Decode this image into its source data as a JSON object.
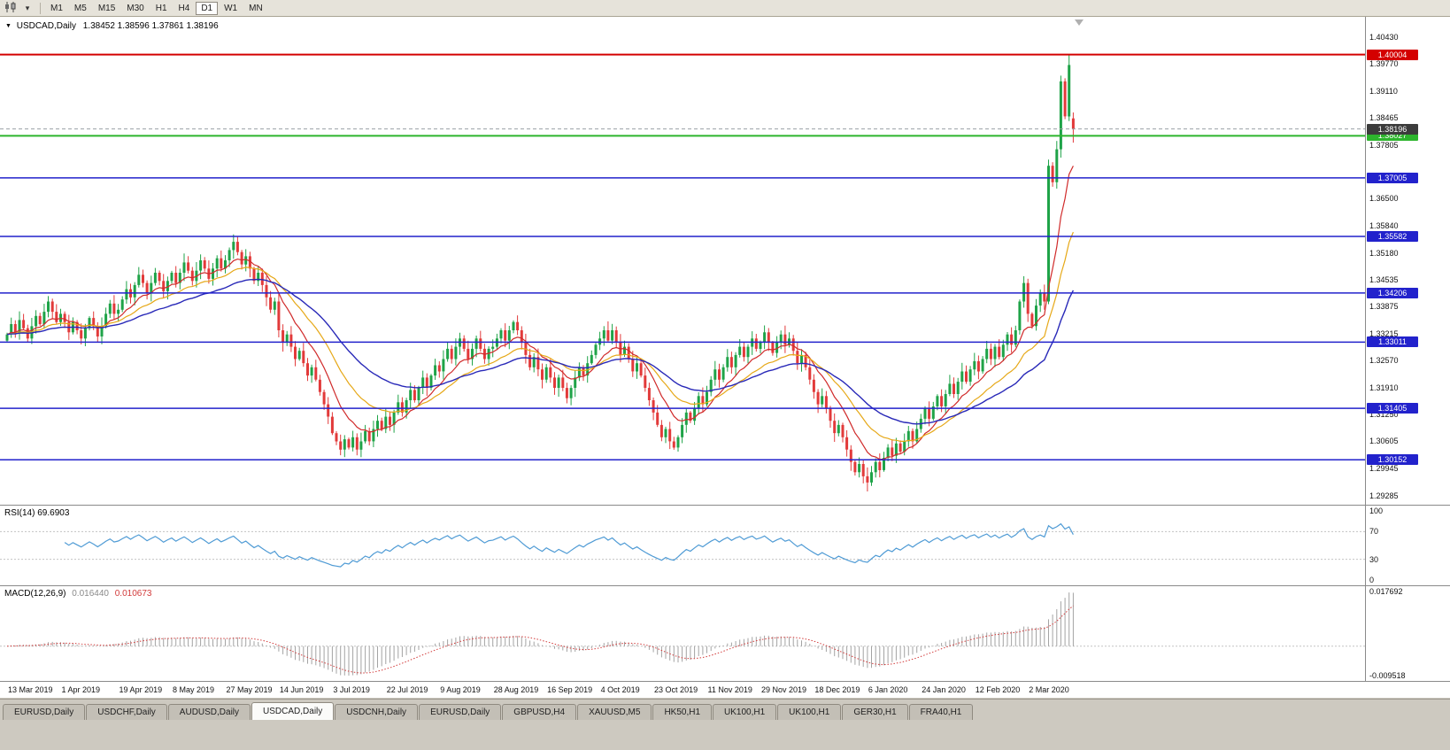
{
  "toolbar": {
    "chart_icon": "candlestick-chart-icon",
    "dropdown_glyph": "▾",
    "timeframes": [
      {
        "label": "M1",
        "active": false
      },
      {
        "label": "M5",
        "active": false
      },
      {
        "label": "M15",
        "active": false
      },
      {
        "label": "M30",
        "active": false
      },
      {
        "label": "H1",
        "active": false
      },
      {
        "label": "H4",
        "active": false
      },
      {
        "label": "D1",
        "active": true
      },
      {
        "label": "W1",
        "active": false
      },
      {
        "label": "MN",
        "active": false
      }
    ]
  },
  "title": {
    "caret": "▼",
    "symbol": "USDCAD,Daily",
    "ohlc": "1.38452 1.38596 1.37861 1.38196"
  },
  "tabs": [
    {
      "label": "EURUSD,Daily",
      "active": false
    },
    {
      "label": "USDCHF,Daily",
      "active": false
    },
    {
      "label": "AUDUSD,Daily",
      "active": false
    },
    {
      "label": "USDCAD,Daily",
      "active": true
    },
    {
      "label": "USDCNH,Daily",
      "active": false
    },
    {
      "label": "EURUSD,Daily",
      "active": false
    },
    {
      "label": "GBPUSD,H4",
      "active": false
    },
    {
      "label": "XAUUSD,M5",
      "active": false
    },
    {
      "label": "HK50,H1",
      "active": false
    },
    {
      "label": "UK100,H1",
      "active": false
    },
    {
      "label": "UK100,H1",
      "active": false
    },
    {
      "label": "GER30,H1",
      "active": false
    },
    {
      "label": "FRA40,H1",
      "active": false
    }
  ],
  "chart_data": {
    "type": "candlestick",
    "symbol": "USDCAD",
    "timeframe": "Daily",
    "current_bar": {
      "open": 1.38452,
      "high": 1.38596,
      "low": 1.37861,
      "close": 1.38196
    },
    "spike_high": 1.40004,
    "candle_colors": {
      "up": "#1fa348",
      "down": "#e23a3a"
    },
    "closes": [
      1.332,
      1.3345,
      1.3325,
      1.3355,
      1.3335,
      1.331,
      1.334,
      1.3365,
      1.3345,
      1.3375,
      1.34,
      1.3375,
      1.335,
      1.337,
      1.335,
      1.3325,
      1.335,
      1.333,
      1.331,
      1.3335,
      1.336,
      1.334,
      1.3315,
      1.334,
      1.337,
      1.3395,
      1.337,
      1.338,
      1.3405,
      1.343,
      1.341,
      1.344,
      1.3465,
      1.3445,
      1.342,
      1.3445,
      1.347,
      1.345,
      1.3425,
      1.345,
      1.347,
      1.3445,
      1.347,
      1.3495,
      1.3475,
      1.345,
      1.3475,
      1.35,
      1.348,
      1.3455,
      1.348,
      1.3505,
      1.348,
      1.35,
      1.3525,
      1.3545,
      1.352,
      1.349,
      1.351,
      1.348,
      1.345,
      1.347,
      1.344,
      1.341,
      1.338,
      1.34,
      1.333,
      1.33,
      1.332,
      1.329,
      1.326,
      1.328,
      1.325,
      1.322,
      1.324,
      1.321,
      1.318,
      1.315,
      1.312,
      1.308,
      1.306,
      1.304,
      1.3065,
      1.3045,
      1.307,
      1.304,
      1.306,
      1.3085,
      1.306,
      1.309,
      1.311,
      1.309,
      1.312,
      1.31,
      1.313,
      1.3155,
      1.313,
      1.316,
      1.3185,
      1.316,
      1.319,
      1.3215,
      1.319,
      1.322,
      1.3245,
      1.323,
      1.326,
      1.3285,
      1.326,
      1.329,
      1.331,
      1.3285,
      1.326,
      1.3285,
      1.331,
      1.3285,
      1.326,
      1.3285,
      1.329,
      1.331,
      1.333,
      1.3305,
      1.333,
      1.335,
      1.333,
      1.33,
      1.327,
      1.324,
      1.3265,
      1.3235,
      1.321,
      1.324,
      1.3215,
      1.319,
      1.3215,
      1.319,
      1.3165,
      1.319,
      1.3215,
      1.324,
      1.322,
      1.325,
      1.327,
      1.3295,
      1.331,
      1.333,
      1.3305,
      1.333,
      1.33,
      1.327,
      1.329,
      1.326,
      1.323,
      1.325,
      1.322,
      1.319,
      1.316,
      1.313,
      1.31,
      1.307,
      1.309,
      1.306,
      1.3045,
      1.307,
      1.31,
      1.313,
      1.311,
      1.314,
      1.317,
      1.315,
      1.318,
      1.321,
      1.3235,
      1.321,
      1.324,
      1.3265,
      1.324,
      1.327,
      1.329,
      1.3265,
      1.329,
      1.331,
      1.3285,
      1.33,
      1.3325,
      1.33,
      1.3275,
      1.33,
      1.332,
      1.3295,
      1.331,
      1.328,
      1.325,
      1.327,
      1.324,
      1.321,
      1.318,
      1.315,
      1.317,
      1.314,
      1.311,
      1.308,
      1.31,
      1.307,
      1.304,
      1.301,
      1.2985,
      1.3005,
      1.2975,
      1.296,
      1.2985,
      1.301,
      1.299,
      1.302,
      1.3045,
      1.3025,
      1.3055,
      1.3035,
      1.306,
      1.3085,
      1.306,
      1.309,
      1.3115,
      1.314,
      1.3115,
      1.3145,
      1.317,
      1.3145,
      1.3175,
      1.32,
      1.3175,
      1.3205,
      1.323,
      1.3205,
      1.3235,
      1.3255,
      1.323,
      1.326,
      1.3285,
      1.326,
      1.329,
      1.3265,
      1.3295,
      1.332,
      1.3295,
      1.333,
      1.34,
      1.3445,
      1.337,
      1.334,
      1.339,
      1.342,
      1.34,
      1.373,
      1.369,
      1.377,
      1.3935,
      1.385,
      1.3975,
      1.38196
    ],
    "price_axis": {
      "max": 1.4092,
      "min": 1.2906,
      "current_label": "1.38196",
      "ticks": [
        "1.40430",
        "1.39770",
        "1.39110",
        "1.38465",
        "1.37805",
        "1.36500",
        "1.35840",
        "1.35180",
        "1.34535",
        "1.33875",
        "1.33215",
        "1.32570",
        "1.31910",
        "1.31250",
        "1.30605",
        "1.29945",
        "1.29285"
      ]
    },
    "levels": [
      {
        "value": 1.40004,
        "label": "1.40004",
        "color": "#d40000",
        "width": 2,
        "kind": "resistance"
      },
      {
        "value": 1.38027,
        "label": "1.38027",
        "color": "#2db52d",
        "width": 2,
        "kind": "support"
      },
      {
        "value": 1.37005,
        "label": "1.37005",
        "color": "#2222cc",
        "width": 1.5,
        "kind": "level"
      },
      {
        "value": 1.35582,
        "label": "1.35582",
        "color": "#2222cc",
        "width": 1.5,
        "kind": "level"
      },
      {
        "value": 1.34206,
        "label": "1.34206",
        "color": "#2222cc",
        "width": 1.5,
        "kind": "level"
      },
      {
        "value": 1.33011,
        "label": "1.33011",
        "color": "#2222cc",
        "width": 1.5,
        "kind": "level"
      },
      {
        "value": 1.31405,
        "label": "1.31405",
        "color": "#2222cc",
        "width": 1.5,
        "kind": "level"
      },
      {
        "value": 1.30152,
        "label": "1.30152",
        "color": "#2222cc",
        "width": 1.5,
        "kind": "level"
      }
    ],
    "moving_averages": [
      {
        "period": 10,
        "color": "#d02a2a",
        "width": 1.2
      },
      {
        "period": 21,
        "color": "#e6a817",
        "width": 1.2
      },
      {
        "period": 40,
        "color": "#2929b8",
        "width": 1.4
      }
    ],
    "indicators": {
      "rsi": {
        "period": 14,
        "display": "RSI(14) 69.6903",
        "axis": [
          100,
          70,
          30,
          0
        ],
        "levels": [
          70,
          30
        ],
        "color": "#4f9bd5"
      },
      "macd": {
        "display_name": "MACD(12,26,9)",
        "value_main": "0.016440",
        "value_signal": "0.010673",
        "axis_max": 0.017692,
        "axis_min": -0.009518,
        "axis_max_label": "0.017692",
        "axis_min_label": "-0.009518",
        "hist_color": "#a3a3a3",
        "signal_color": "#d23b3b"
      }
    },
    "time_axis": [
      {
        "label": "13 Mar 2019",
        "index": 0
      },
      {
        "label": "1 Apr 2019",
        "index": 13
      },
      {
        "label": "19 Apr 2019",
        "index": 27
      },
      {
        "label": "8 May 2019",
        "index": 40
      },
      {
        "label": "27 May 2019",
        "index": 53
      },
      {
        "label": "14 Jun 2019",
        "index": 66
      },
      {
        "label": "3 Jul 2019",
        "index": 79
      },
      {
        "label": "22 Jul 2019",
        "index": 92
      },
      {
        "label": "9 Aug 2019",
        "index": 105
      },
      {
        "label": "28 Aug 2019",
        "index": 118
      },
      {
        "label": "16 Sep 2019",
        "index": 131
      },
      {
        "label": "4 Oct 2019",
        "index": 144
      },
      {
        "label": "23 Oct 2019",
        "index": 157
      },
      {
        "label": "11 Nov 2019",
        "index": 170
      },
      {
        "label": "29 Nov 2019",
        "index": 183
      },
      {
        "label": "18 Dec 2019",
        "index": 196
      },
      {
        "label": "6 Jan 2020",
        "index": 209
      },
      {
        "label": "24 Jan 2020",
        "index": 222
      },
      {
        "label": "12 Feb 2020",
        "index": 235
      },
      {
        "label": "2 Mar 2020",
        "index": 248
      }
    ]
  }
}
